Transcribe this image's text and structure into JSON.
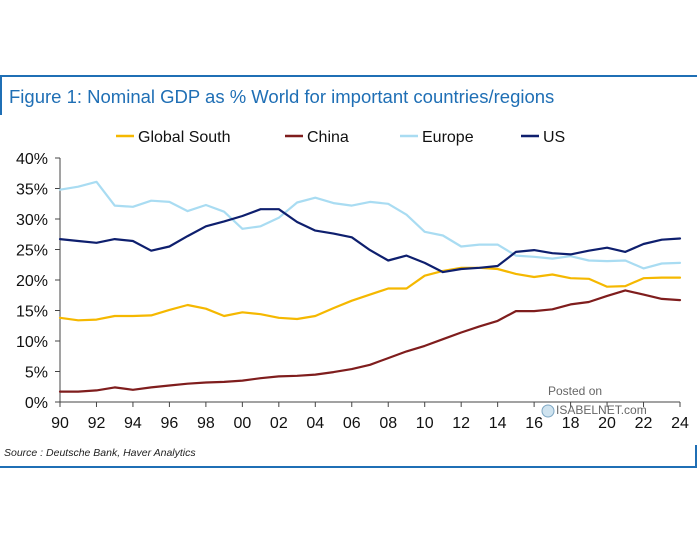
{
  "figure": {
    "title": "Figure 1: Nominal GDP as % World for important countries/regions",
    "source": "Source : Deutsche Bank, Haver Analytics",
    "watermark_line1": "Posted on",
    "watermark_line2": "ISABELNET.com"
  },
  "colors": {
    "frame": "#1f6fb5",
    "global_south": "#f5b800",
    "china": "#7f1d1d",
    "europe": "#a9dcf2",
    "us": "#0e1f6e"
  },
  "chart_data": {
    "type": "line",
    "title": "Figure 1: Nominal GDP as % World for important countries/regions",
    "xlabel": "",
    "ylabel": "",
    "xlim": [
      1990,
      2024
    ],
    "ylim": [
      0,
      40
    ],
    "y_ticks": [
      0,
      5,
      10,
      15,
      20,
      25,
      30,
      35,
      40
    ],
    "y_tick_labels": [
      "0%",
      "5%",
      "10%",
      "15%",
      "20%",
      "25%",
      "30%",
      "35%",
      "40%"
    ],
    "x_ticks": [
      1990,
      1992,
      1994,
      1996,
      1998,
      2000,
      2002,
      2004,
      2006,
      2008,
      2010,
      2012,
      2014,
      2016,
      2018,
      2020,
      2022,
      2024
    ],
    "x_tick_labels": [
      "90",
      "92",
      "94",
      "96",
      "98",
      "00",
      "02",
      "04",
      "06",
      "08",
      "10",
      "12",
      "14",
      "16",
      "18",
      "20",
      "22",
      "24"
    ],
    "grid": false,
    "legend_position": "top",
    "x": [
      1990,
      1991,
      1992,
      1993,
      1994,
      1995,
      1996,
      1997,
      1998,
      1999,
      2000,
      2001,
      2002,
      2003,
      2004,
      2005,
      2006,
      2007,
      2008,
      2009,
      2010,
      2011,
      2012,
      2013,
      2014,
      2015,
      2016,
      2017,
      2018,
      2019,
      2020,
      2021,
      2022,
      2023,
      2024
    ],
    "series": [
      {
        "name": "Global South",
        "color_key": "global_south",
        "values": [
          13.8,
          13.4,
          13.5,
          14.1,
          14.1,
          14.2,
          15.1,
          15.9,
          15.3,
          14.1,
          14.7,
          14.4,
          13.8,
          13.6,
          14.1,
          15.4,
          16.6,
          17.6,
          18.6,
          18.6,
          20.7,
          21.5,
          22.0,
          22.0,
          21.8,
          21.0,
          20.5,
          20.9,
          20.3,
          20.2,
          18.9,
          19.0,
          20.3,
          20.4,
          20.4
        ]
      },
      {
        "name": "China",
        "color_key": "china",
        "values": [
          1.7,
          1.7,
          1.9,
          2.4,
          2.0,
          2.4,
          2.7,
          3.0,
          3.2,
          3.3,
          3.5,
          3.9,
          4.2,
          4.3,
          4.5,
          4.9,
          5.4,
          6.1,
          7.2,
          8.3,
          9.2,
          10.3,
          11.4,
          12.4,
          13.3,
          14.9,
          14.9,
          15.2,
          16.0,
          16.4,
          17.4,
          18.3,
          17.6,
          16.9,
          16.7
        ]
      },
      {
        "name": "Europe",
        "color_key": "europe",
        "values": [
          34.8,
          35.3,
          36.1,
          32.2,
          32.0,
          33.0,
          32.8,
          31.3,
          32.3,
          31.2,
          28.4,
          28.8,
          30.2,
          32.7,
          33.5,
          32.6,
          32.2,
          32.8,
          32.5,
          30.7,
          27.9,
          27.3,
          25.5,
          25.8,
          25.8,
          24.0,
          23.8,
          23.5,
          23.9,
          23.2,
          23.1,
          23.2,
          21.9,
          22.7,
          22.8
        ]
      },
      {
        "name": "US",
        "color_key": "us",
        "values": [
          26.7,
          26.4,
          26.1,
          26.7,
          26.4,
          24.8,
          25.5,
          27.2,
          28.8,
          29.6,
          30.5,
          31.6,
          31.6,
          29.5,
          28.1,
          27.6,
          27.0,
          24.9,
          23.2,
          24.0,
          22.8,
          21.3,
          21.8,
          22.0,
          22.3,
          24.6,
          24.9,
          24.4,
          24.2,
          24.8,
          25.3,
          24.6,
          25.9,
          26.6,
          26.8
        ]
      }
    ]
  }
}
